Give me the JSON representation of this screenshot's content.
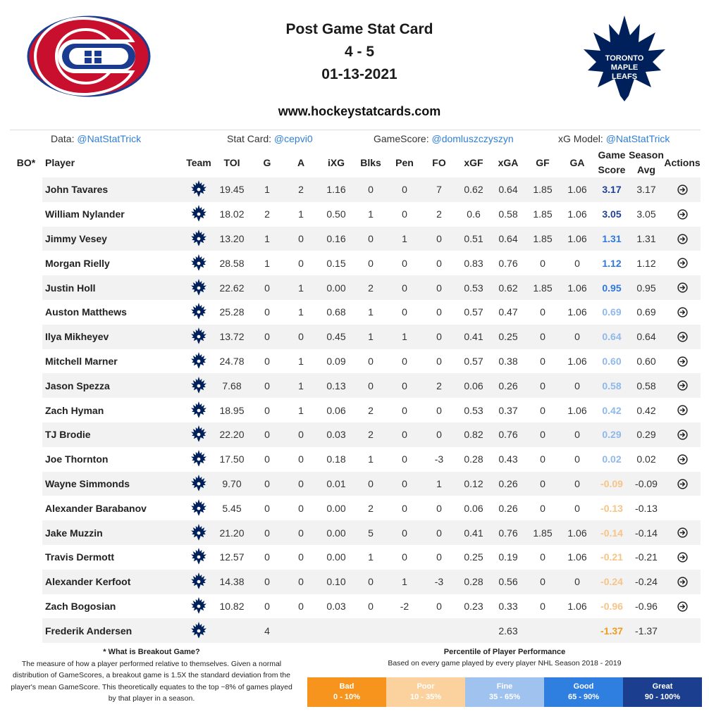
{
  "header": {
    "title": "Post Game Stat Card",
    "score": "4 - 5",
    "date": "01-13-2021",
    "website": "www.hockeystatcards.com",
    "logo_left": "montreal-canadiens-logo",
    "logo_right": "toronto-maple-leafs-logo",
    "logo_right_text": [
      "TORONTO",
      "MAPLE",
      "LEAFS"
    ]
  },
  "credits": [
    {
      "label": "Data: ",
      "handle": "@NatStatTrick"
    },
    {
      "label": "Stat Card: ",
      "handle": "@cepvi0"
    },
    {
      "label": "GameScore: ",
      "handle": "@domluszczyszyn"
    },
    {
      "label": "xG Model: ",
      "handle": "@NatStatTrick"
    }
  ],
  "columns": {
    "bo": "BO*",
    "player": "Player",
    "team": "Team",
    "toi": "TOI",
    "g": "G",
    "a": "A",
    "ixg": "iXG",
    "blks": "Blks",
    "pen": "Pen",
    "fo": "FO",
    "xgf": "xGF",
    "xga": "xGA",
    "gf": "GF",
    "ga": "GA",
    "game_score_1": "Game",
    "game_score_2": "Score",
    "season_avg_1": "Season",
    "season_avg_2": "Avg",
    "actions": "Actions"
  },
  "rows": [
    {
      "player": "John Tavares",
      "toi": "19.45",
      "g": "1",
      "a": "2",
      "ixg": "1.16",
      "blks": "0",
      "pen": "0",
      "fo": "7",
      "xgf": "0.62",
      "xga": "0.64",
      "gf": "1.85",
      "ga": "1.06",
      "gs": "3.17",
      "avg": "3.17",
      "tier": "great",
      "action": true
    },
    {
      "player": "William Nylander",
      "toi": "18.02",
      "g": "2",
      "a": "1",
      "ixg": "0.50",
      "blks": "1",
      "pen": "0",
      "fo": "2",
      "xgf": "0.6",
      "xga": "0.58",
      "gf": "1.85",
      "ga": "1.06",
      "gs": "3.05",
      "avg": "3.05",
      "tier": "great",
      "action": true
    },
    {
      "player": "Jimmy Vesey",
      "toi": "13.20",
      "g": "1",
      "a": "0",
      "ixg": "0.16",
      "blks": "0",
      "pen": "1",
      "fo": "0",
      "xgf": "0.51",
      "xga": "0.64",
      "gf": "1.85",
      "ga": "1.06",
      "gs": "1.31",
      "avg": "1.31",
      "tier": "good",
      "action": true
    },
    {
      "player": "Morgan Rielly",
      "toi": "28.58",
      "g": "1",
      "a": "0",
      "ixg": "0.15",
      "blks": "0",
      "pen": "0",
      "fo": "0",
      "xgf": "0.83",
      "xga": "0.76",
      "gf": "0",
      "ga": "0",
      "gs": "1.12",
      "avg": "1.12",
      "tier": "good",
      "action": true
    },
    {
      "player": "Justin Holl",
      "toi": "22.62",
      "g": "0",
      "a": "1",
      "ixg": "0.00",
      "blks": "2",
      "pen": "0",
      "fo": "0",
      "xgf": "0.53",
      "xga": "0.62",
      "gf": "1.85",
      "ga": "1.06",
      "gs": "0.95",
      "avg": "0.95",
      "tier": "good",
      "action": true
    },
    {
      "player": "Auston Matthews",
      "toi": "25.28",
      "g": "0",
      "a": "1",
      "ixg": "0.68",
      "blks": "1",
      "pen": "0",
      "fo": "0",
      "xgf": "0.57",
      "xga": "0.47",
      "gf": "0",
      "ga": "1.06",
      "gs": "0.69",
      "avg": "0.69",
      "tier": "fine",
      "action": true
    },
    {
      "player": "Ilya Mikheyev",
      "toi": "13.72",
      "g": "0",
      "a": "0",
      "ixg": "0.45",
      "blks": "1",
      "pen": "1",
      "fo": "0",
      "xgf": "0.41",
      "xga": "0.25",
      "gf": "0",
      "ga": "0",
      "gs": "0.64",
      "avg": "0.64",
      "tier": "fine",
      "action": true
    },
    {
      "player": "Mitchell Marner",
      "toi": "24.78",
      "g": "0",
      "a": "1",
      "ixg": "0.09",
      "blks": "0",
      "pen": "0",
      "fo": "0",
      "xgf": "0.57",
      "xga": "0.38",
      "gf": "0",
      "ga": "1.06",
      "gs": "0.60",
      "avg": "0.60",
      "tier": "fine",
      "action": true
    },
    {
      "player": "Jason Spezza",
      "toi": "7.68",
      "g": "0",
      "a": "1",
      "ixg": "0.13",
      "blks": "0",
      "pen": "0",
      "fo": "2",
      "xgf": "0.06",
      "xga": "0.26",
      "gf": "0",
      "ga": "0",
      "gs": "0.58",
      "avg": "0.58",
      "tier": "fine",
      "action": true
    },
    {
      "player": "Zach Hyman",
      "toi": "18.95",
      "g": "0",
      "a": "1",
      "ixg": "0.06",
      "blks": "2",
      "pen": "0",
      "fo": "0",
      "xgf": "0.53",
      "xga": "0.37",
      "gf": "0",
      "ga": "1.06",
      "gs": "0.42",
      "avg": "0.42",
      "tier": "fine",
      "action": true
    },
    {
      "player": "TJ Brodie",
      "toi": "22.20",
      "g": "0",
      "a": "0",
      "ixg": "0.03",
      "blks": "2",
      "pen": "0",
      "fo": "0",
      "xgf": "0.82",
      "xga": "0.76",
      "gf": "0",
      "ga": "0",
      "gs": "0.29",
      "avg": "0.29",
      "tier": "fine",
      "action": true
    },
    {
      "player": "Joe Thornton",
      "toi": "17.50",
      "g": "0",
      "a": "0",
      "ixg": "0.18",
      "blks": "1",
      "pen": "0",
      "fo": "-3",
      "xgf": "0.28",
      "xga": "0.43",
      "gf": "0",
      "ga": "0",
      "gs": "0.02",
      "avg": "0.02",
      "tier": "fine",
      "action": true
    },
    {
      "player": "Wayne Simmonds",
      "toi": "9.70",
      "g": "0",
      "a": "0",
      "ixg": "0.01",
      "blks": "0",
      "pen": "0",
      "fo": "1",
      "xgf": "0.12",
      "xga": "0.26",
      "gf": "0",
      "ga": "0",
      "gs": "-0.09",
      "avg": "-0.09",
      "tier": "poor",
      "action": true
    },
    {
      "player": "Alexander Barabanov",
      "toi": "5.45",
      "g": "0",
      "a": "0",
      "ixg": "0.00",
      "blks": "2",
      "pen": "0",
      "fo": "0",
      "xgf": "0.06",
      "xga": "0.26",
      "gf": "0",
      "ga": "0",
      "gs": "-0.13",
      "avg": "-0.13",
      "tier": "poor",
      "action": false
    },
    {
      "player": "Jake Muzzin",
      "toi": "21.20",
      "g": "0",
      "a": "0",
      "ixg": "0.00",
      "blks": "5",
      "pen": "0",
      "fo": "0",
      "xgf": "0.41",
      "xga": "0.76",
      "gf": "1.85",
      "ga": "1.06",
      "gs": "-0.14",
      "avg": "-0.14",
      "tier": "poor",
      "action": true
    },
    {
      "player": "Travis Dermott",
      "toi": "12.57",
      "g": "0",
      "a": "0",
      "ixg": "0.00",
      "blks": "1",
      "pen": "0",
      "fo": "0",
      "xgf": "0.25",
      "xga": "0.19",
      "gf": "0",
      "ga": "1.06",
      "gs": "-0.21",
      "avg": "-0.21",
      "tier": "poor",
      "action": true
    },
    {
      "player": "Alexander Kerfoot",
      "toi": "14.38",
      "g": "0",
      "a": "0",
      "ixg": "0.10",
      "blks": "0",
      "pen": "1",
      "fo": "-3",
      "xgf": "0.28",
      "xga": "0.56",
      "gf": "0",
      "ga": "0",
      "gs": "-0.24",
      "avg": "-0.24",
      "tier": "poor",
      "action": true
    },
    {
      "player": "Zach Bogosian",
      "toi": "10.82",
      "g": "0",
      "a": "0",
      "ixg": "0.03",
      "blks": "0",
      "pen": "-2",
      "fo": "0",
      "xgf": "0.23",
      "xga": "0.33",
      "gf": "0",
      "ga": "1.06",
      "gs": "-0.96",
      "avg": "-0.96",
      "tier": "poor",
      "action": true
    },
    {
      "player": "Frederik Andersen",
      "toi": "",
      "g": "4",
      "a": "",
      "ixg": "",
      "blks": "",
      "pen": "",
      "fo": "",
      "xgf": "",
      "xga": "2.63",
      "gf": "",
      "ga": "",
      "gs": "-1.37",
      "avg": "-1.37",
      "tier": "bad",
      "action": false
    }
  ],
  "footnote": {
    "title": "* What is Breakout Game?",
    "text": "The measure of how a player performed relative to themselves. Given a normal distribution of GameScores, a breakout game is 1.5X the standard deviation from the player's mean GameScore. This theoretically equates to the top ~8% of games played by that player in a season."
  },
  "percentile": {
    "title": "Percentile of Player Performance",
    "subtitle": "Based on every game played by every player NHL Season 2018 - 2019",
    "legend": [
      {
        "label": "Bad",
        "range": "0 - 10%",
        "color": "#f7941d"
      },
      {
        "label": "Poor",
        "range": "10 - 35%",
        "color": "#fbd29e"
      },
      {
        "label": "Fine",
        "range": "35 - 65%",
        "color": "#9fc2ef"
      },
      {
        "label": "Good",
        "range": "65 - 90%",
        "color": "#2f7fe0"
      },
      {
        "label": "Great",
        "range": "90 - 100%",
        "color": "#1b3e8f"
      }
    ]
  },
  "colors": {
    "link": "#2f7fd6",
    "habs_red": "#c8102e",
    "habs_blue": "#1a3b8f",
    "leafs_blue": "#00205b"
  }
}
